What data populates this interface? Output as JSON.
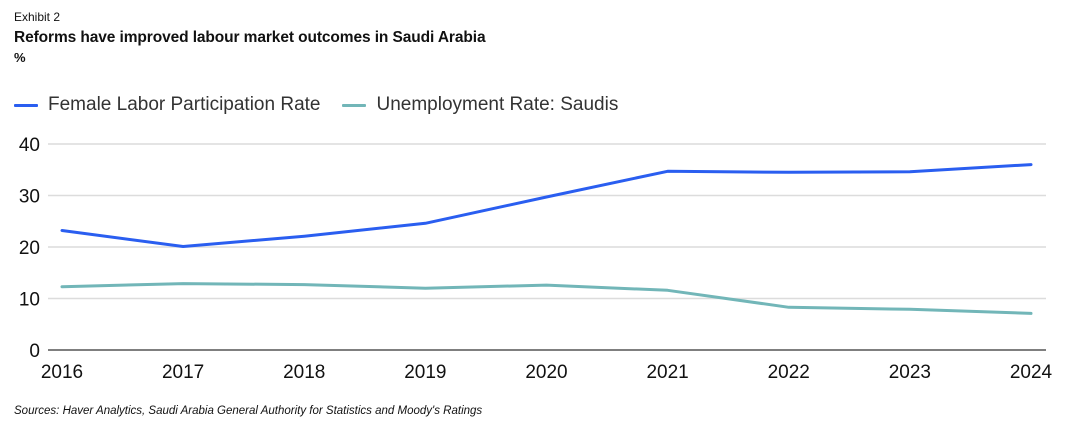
{
  "header": {
    "exhibit": "Exhibit 2",
    "title": "Reforms have improved labour market outcomes in Saudi Arabia",
    "unit": "%"
  },
  "footer": {
    "sources": "Sources: Haver Analytics, Saudi Arabia General Authority for Statistics and Moody's Ratings"
  },
  "chart_data": {
    "type": "line",
    "title": "Reforms have improved labour market outcomes in Saudi Arabia",
    "xlabel": "",
    "ylabel": "%",
    "x": [
      "2016",
      "2017",
      "2018",
      "2019",
      "2020",
      "2021",
      "2022",
      "2023",
      "2024"
    ],
    "ylim": [
      0,
      40
    ],
    "yticks": [
      "0",
      "10",
      "20",
      "30",
      "40"
    ],
    "grid": true,
    "legend_position": "top-left",
    "series": [
      {
        "name": "Female Labor Participation Rate",
        "color": "#2a5ef0",
        "values": [
          23.2,
          20.1,
          22.1,
          24.6,
          29.7,
          34.7,
          34.5,
          34.6,
          36.0
        ]
      },
      {
        "name": "Unemployment Rate: Saudis",
        "color": "#72b6b8",
        "values": [
          12.3,
          12.9,
          12.7,
          12.0,
          12.6,
          11.6,
          8.3,
          7.9,
          7.1
        ]
      }
    ]
  }
}
